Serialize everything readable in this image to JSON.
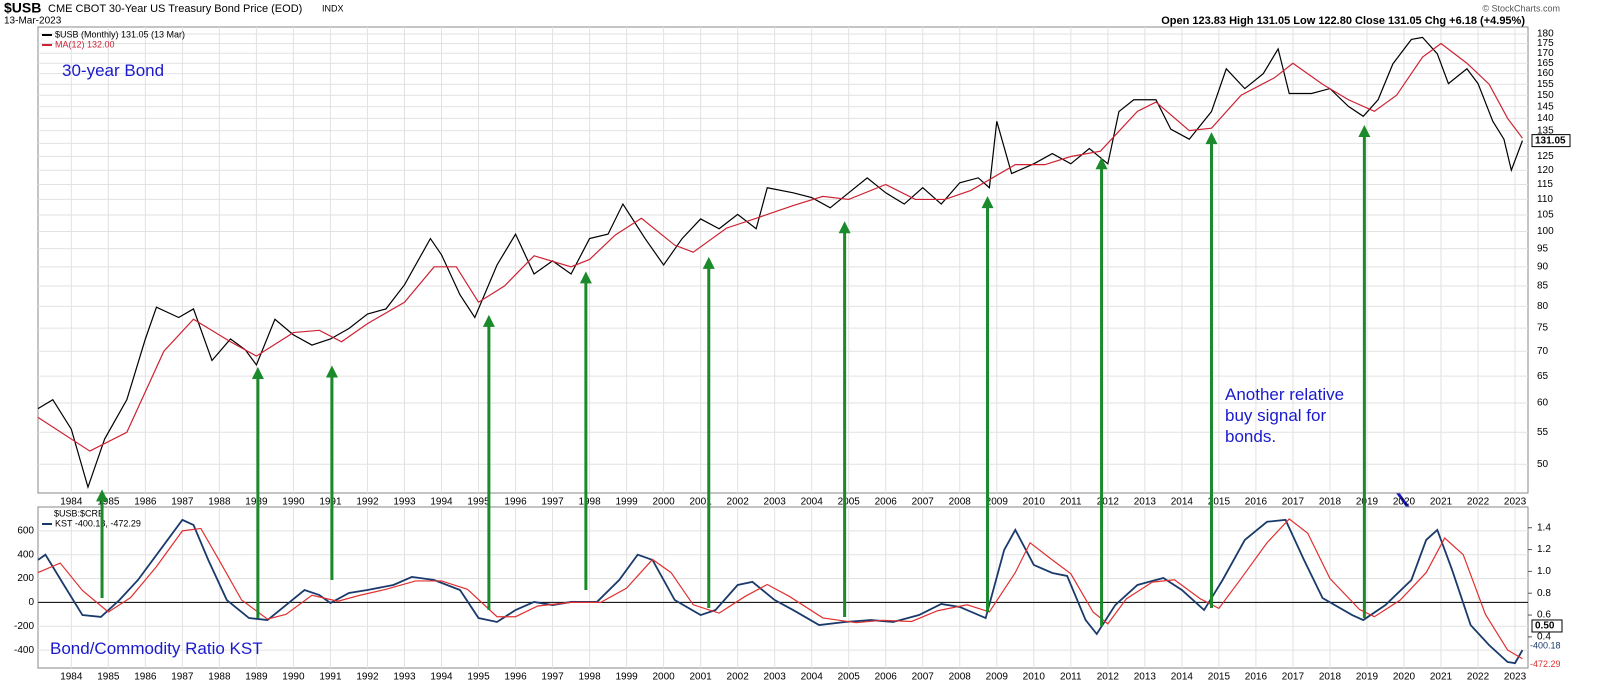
{
  "header": {
    "symbol": "$USB",
    "name": "CME CBOT 30-Year US Treasury Bond Price (EOD)",
    "exchange": "INDX",
    "date": "13-Mar-2023",
    "quote": "Open 123.83 High 131.05 Low 122.80 Close 131.05 Chg +6.18 (+4.95%)",
    "credit": "© StockCharts.com"
  },
  "chart_data": [
    {
      "type": "line",
      "log_scale": true,
      "grid": true,
      "annotation": "30-year Bond",
      "note": "Another relative buy signal for bonds.",
      "last_value_label": {
        "value": 131.05,
        "label": "131.05"
      },
      "xlim": [
        1983.1,
        2023.35
      ],
      "xticks": [
        1984,
        1985,
        1986,
        1987,
        1988,
        1989,
        1990,
        1991,
        1992,
        1993,
        1994,
        1995,
        1996,
        1997,
        1998,
        1999,
        2000,
        2001,
        2002,
        2003,
        2004,
        2005,
        2006,
        2007,
        2008,
        2009,
        2010,
        2011,
        2012,
        2013,
        2014,
        2015,
        2016,
        2017,
        2018,
        2019,
        2020,
        2021,
        2022,
        2023
      ],
      "ylim": [
        45.9,
        183.8
      ],
      "yticks": [
        50,
        55,
        60,
        65,
        70,
        75,
        80,
        85,
        90,
        95,
        100,
        105,
        110,
        115,
        120,
        125,
        130,
        135,
        140,
        145,
        150,
        155,
        160,
        165,
        170,
        175,
        180
      ],
      "series": [
        {
          "name": "$USB (Monthly) 131.05 (13 Mar)",
          "color": "#000000",
          "x": [
            1983.1,
            1983.5,
            1984.0,
            1984.45,
            1984.9,
            1985.5,
            1986.0,
            1986.3,
            1986.9,
            1987.3,
            1987.8,
            1988.3,
            1988.7,
            1989.0,
            1989.5,
            1990.0,
            1990.5,
            1991.0,
            1991.5,
            1992.0,
            1992.5,
            1993.0,
            1993.7,
            1994.0,
            1994.5,
            1994.9,
            1995.5,
            1996.0,
            1996.5,
            1997.0,
            1997.5,
            1998.0,
            1998.5,
            1998.9,
            1999.5,
            2000.0,
            2000.5,
            2001.0,
            2001.5,
            2002.0,
            2002.5,
            2002.8,
            2003.5,
            2004.0,
            2004.5,
            2005.0,
            2005.5,
            2006.0,
            2006.5,
            2007.0,
            2007.5,
            2008.0,
            2008.5,
            2008.8,
            2009.0,
            2009.4,
            2010.0,
            2010.5,
            2011.0,
            2011.5,
            2012.0,
            2012.3,
            2012.7,
            2013.3,
            2013.7,
            2014.2,
            2014.8,
            2015.2,
            2015.7,
            2016.2,
            2016.6,
            2016.9,
            2017.5,
            2018.0,
            2018.5,
            2018.9,
            2019.3,
            2019.7,
            2020.2,
            2020.5,
            2020.9,
            2021.2,
            2021.7,
            2022.0,
            2022.4,
            2022.7,
            2022.9,
            2023.2
          ],
          "values": [
            59,
            60.6,
            55.5,
            46.7,
            53.9,
            60.6,
            72.6,
            79.8,
            77.4,
            79.4,
            68.1,
            72.6,
            70.3,
            67.2,
            77.0,
            73.5,
            71.3,
            72.6,
            74.9,
            78.2,
            79.4,
            85.3,
            97.9,
            93.3,
            82.8,
            77.4,
            90.5,
            99.2,
            88.1,
            91.6,
            88.1,
            97.9,
            99.2,
            108.5,
            97.9,
            90.5,
            97.9,
            103.8,
            100.8,
            105.2,
            100.8,
            113.9,
            112.2,
            110.6,
            107.3,
            112.2,
            117.3,
            112.2,
            108.5,
            113.9,
            108.5,
            115.6,
            117.3,
            113.9,
            138.8,
            118.8,
            122.3,
            126.1,
            122.3,
            128.0,
            122.3,
            142.9,
            148.0,
            148.0,
            135.6,
            131.6,
            142.9,
            162.3,
            153.0,
            160.0,
            172.2,
            150.8,
            150.8,
            153.0,
            145.1,
            140.9,
            148.0,
            164.7,
            177.1,
            178.2,
            169.7,
            155.3,
            162.3,
            155.3,
            138.8,
            131.6,
            120.0,
            131.05
          ]
        },
        {
          "name": "MA(12) 132.00",
          "color": "#cc2233",
          "x": [
            1983.1,
            1984.5,
            1985.5,
            1986.5,
            1987.3,
            1988.3,
            1989.0,
            1990.0,
            1990.7,
            1991.3,
            1992.0,
            1993.0,
            1993.8,
            1994.4,
            1995.0,
            1995.7,
            1996.5,
            1997.5,
            1998.0,
            1998.7,
            1999.4,
            2000.3,
            2000.8,
            2001.7,
            2002.5,
            2003.5,
            2004.3,
            2005.0,
            2006.0,
            2006.8,
            2007.6,
            2008.3,
            2009.5,
            2010.3,
            2011.0,
            2011.8,
            2012.8,
            2013.3,
            2014.2,
            2014.8,
            2015.6,
            2016.5,
            2017.0,
            2017.8,
            2018.5,
            2019.2,
            2019.8,
            2020.5,
            2021.0,
            2021.7,
            2022.3,
            2022.8,
            2023.2
          ],
          "values": [
            57.5,
            52,
            55,
            70,
            77,
            72,
            69,
            74,
            74.5,
            72,
            76,
            81,
            90,
            90,
            81,
            85,
            93,
            90,
            92,
            99,
            104,
            96,
            94,
            101,
            104,
            108,
            111,
            110,
            115,
            110,
            110,
            113,
            122,
            122,
            125,
            127,
            143,
            147,
            135,
            136,
            150,
            158,
            165,
            155,
            148,
            143,
            150,
            168,
            175,
            165,
            155,
            140,
            132
          ]
        }
      ],
      "arrows": [
        {
          "x": 1984.83,
          "to": 46.4,
          "from": 37
        },
        {
          "x": 1989.04,
          "to": 66.8,
          "from": -131
        },
        {
          "x": 1991.04,
          "to": 67.1,
          "from": 188
        },
        {
          "x": 1995.28,
          "to": 78,
          "from": -64
        },
        {
          "x": 1997.9,
          "to": 88.8,
          "from": 104
        },
        {
          "x": 2001.22,
          "to": 92.7,
          "from": -47
        },
        {
          "x": 2004.89,
          "to": 103.1,
          "from": -122
        },
        {
          "x": 2008.75,
          "to": 111.1,
          "from": -80
        },
        {
          "x": 2011.83,
          "to": 124.7,
          "from": -198
        },
        {
          "x": 2014.8,
          "to": 134.4,
          "from": -47
        },
        {
          "x": 2018.93,
          "to": 137.3,
          "from": -131
        }
      ],
      "arrow_color": "#1a8a2a"
    },
    {
      "type": "line",
      "title": "$USB:$CRB",
      "legend_label": "KST -400.18, -472.29",
      "annotation": "Bond/Commodity Ratio KST",
      "grid": true,
      "reference_line": 0,
      "xlim": [
        1983.1,
        2023.35
      ],
      "xticks": [
        1984,
        1985,
        1986,
        1987,
        1988,
        1989,
        1990,
        1991,
        1992,
        1993,
        1994,
        1995,
        1996,
        1997,
        1998,
        1999,
        2000,
        2001,
        2002,
        2003,
        2004,
        2005,
        2006,
        2007,
        2008,
        2009,
        2010,
        2011,
        2012,
        2013,
        2014,
        2015,
        2016,
        2017,
        2018,
        2019,
        2020,
        2021,
        2022,
        2023
      ],
      "ylim": [
        -550,
        800
      ],
      "yticks": [
        -400,
        -200,
        0,
        200,
        400,
        600
      ],
      "y2lim": [
        0.115,
        1.59
      ],
      "y2ticks": [
        0.4,
        0.6,
        0.8,
        {
          "value": 1,
          "label": "1.0"
        },
        1.2,
        1.4
      ],
      "y2_last_label": {
        "value": 0.5,
        "label": "0.50"
      },
      "series": [
        {
          "color": "#1a3a6b",
          "last_label": "-400.18",
          "x": [
            1983.1,
            1983.3,
            1983.8,
            1984.3,
            1984.8,
            1985.3,
            1985.8,
            1986.5,
            1987.0,
            1987.3,
            1987.7,
            1988.2,
            1988.8,
            1989.3,
            1989.8,
            1990.3,
            1990.7,
            1991.0,
            1991.5,
            1992.0,
            1992.7,
            1993.2,
            1993.8,
            1994.5,
            1995.0,
            1995.5,
            1996.0,
            1996.5,
            1997.0,
            1997.5,
            1998.2,
            1998.8,
            1999.3,
            1999.7,
            2000.3,
            2001.0,
            2001.4,
            2002.0,
            2002.4,
            2003.0,
            2003.5,
            2004.2,
            2004.9,
            2005.6,
            2006.2,
            2006.9,
            2007.5,
            2008.0,
            2008.7,
            2009.2,
            2009.5,
            2010.0,
            2010.5,
            2010.9,
            2011.4,
            2011.7,
            2012.2,
            2012.8,
            2013.5,
            2014.0,
            2014.6,
            2015.1,
            2015.7,
            2016.3,
            2016.8,
            2017.3,
            2017.8,
            2018.6,
            2018.9,
            2019.5,
            2020.2,
            2020.6,
            2020.9,
            2021.3,
            2021.8,
            2022.3,
            2022.8,
            2023.0,
            2023.2
          ],
          "values": [
            356,
            400,
            146,
            -106,
            -122,
            20,
            188,
            482,
            692,
            650,
            356,
            20,
            -131,
            -148,
            -22,
            104,
            62,
            -5,
            79,
            104,
            146,
            214,
            188,
            104,
            -131,
            -164,
            -64,
            4,
            -22,
            4,
            4,
            188,
            400,
            356,
            20,
            -106,
            -64,
            146,
            172,
            20,
            -64,
            -190,
            -164,
            -148,
            -164,
            -106,
            -13,
            -38,
            -131,
            440,
            608,
            314,
            247,
            222,
            -148,
            -265,
            -22,
            146,
            205,
            104,
            -64,
            188,
            524,
            676,
            692,
            356,
            37,
            -106,
            -148,
            -22,
            188,
            524,
            608,
            272,
            -190,
            -358,
            -500,
            -509,
            -400.18
          ]
        },
        {
          "color": "#e03030",
          "last_label": "-472.29",
          "x": [
            1983.1,
            1983.7,
            1984.3,
            1985.0,
            1985.6,
            1986.3,
            1987.0,
            1987.5,
            1988.0,
            1988.6,
            1989.3,
            1989.8,
            1990.5,
            1991.2,
            1991.8,
            1992.5,
            1993.3,
            1994.0,
            1994.7,
            1995.5,
            1996.0,
            1996.6,
            1997.5,
            1998.3,
            1999.0,
            1999.7,
            2000.2,
            2000.8,
            2001.5,
            2002.2,
            2002.8,
            2003.4,
            2004.3,
            2005.2,
            2005.9,
            2006.7,
            2007.4,
            2008.2,
            2008.8,
            2009.5,
            2009.9,
            2010.4,
            2011.0,
            2011.6,
            2012.0,
            2012.5,
            2013.2,
            2013.8,
            2014.5,
            2015.0,
            2015.6,
            2016.3,
            2016.9,
            2017.4,
            2018.0,
            2018.8,
            2019.2,
            2019.9,
            2020.6,
            2021.1,
            2021.6,
            2022.2,
            2022.8,
            2023.2
          ],
          "values": [
            250,
            330,
            100,
            -80,
            40,
            300,
            600,
            620,
            350,
            20,
            -140,
            -100,
            60,
            10,
            60,
            110,
            180,
            180,
            110,
            -120,
            -120,
            -30,
            0,
            0,
            120,
            360,
            250,
            -20,
            -90,
            50,
            150,
            50,
            -130,
            -170,
            -150,
            -160,
            -70,
            -20,
            -80,
            250,
            500,
            380,
            240,
            -80,
            -180,
            30,
            170,
            190,
            30,
            -50,
            200,
            500,
            700,
            580,
            200,
            -60,
            -120,
            20,
            250,
            540,
            400,
            -100,
            -400,
            -472.29
          ]
        }
      ]
    }
  ]
}
